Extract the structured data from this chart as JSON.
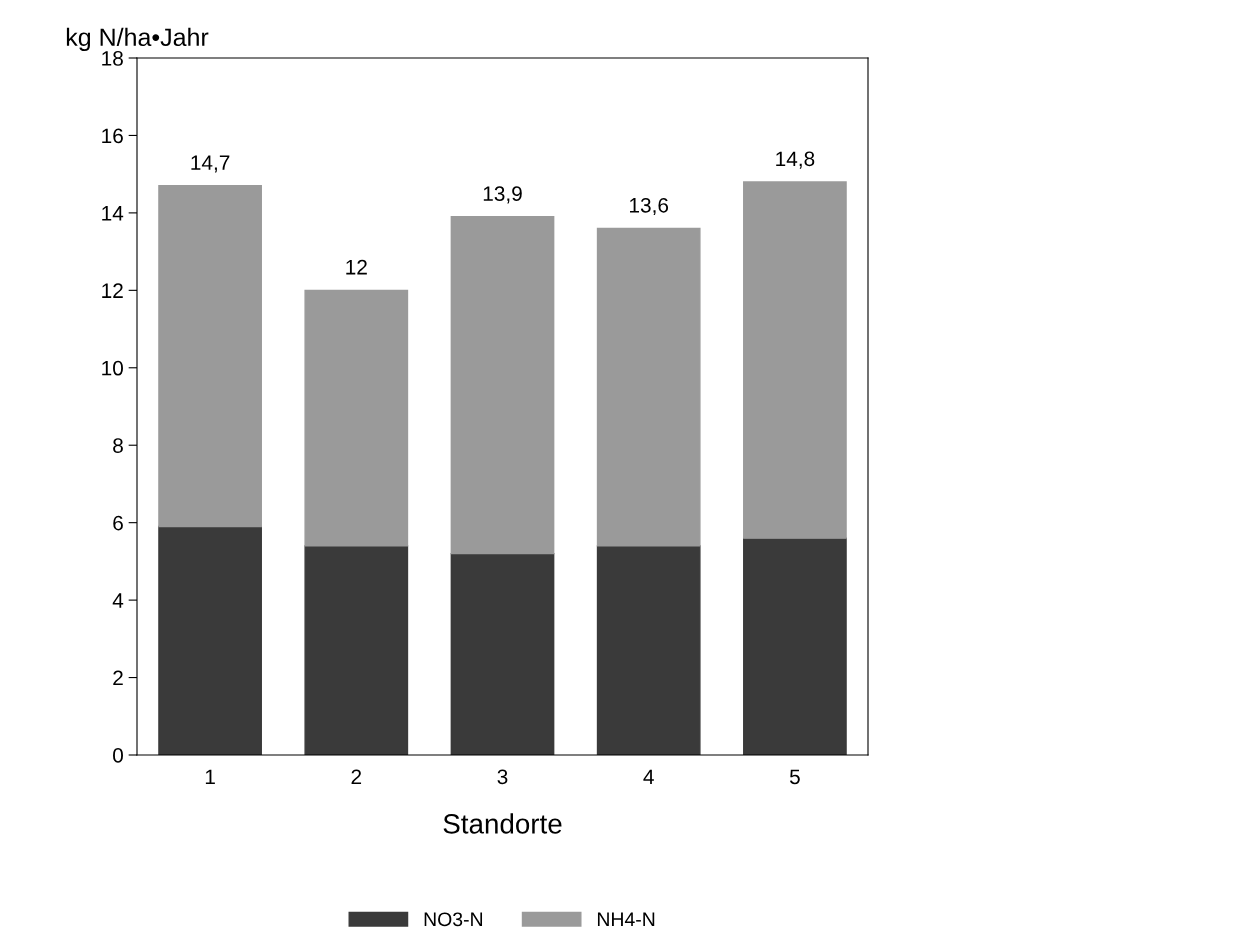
{
  "chart_data": {
    "type": "bar",
    "stacked": true,
    "ylabel": "kg N/ha•Jahr",
    "xlabel": "Standorte",
    "categories": [
      "1",
      "2",
      "3",
      "4",
      "5"
    ],
    "series": [
      {
        "name": "NO3-N",
        "color": "#3a3a3a",
        "values": [
          5.9,
          5.4,
          5.2,
          5.4,
          5.6
        ]
      },
      {
        "name": "NH4-N",
        "color": "#9a9a9a",
        "values": [
          8.8,
          6.6,
          8.7,
          8.2,
          9.2
        ]
      }
    ],
    "totals": [
      "14,7",
      "12",
      "13,9",
      "13,6",
      "14,8"
    ],
    "ylim": [
      0,
      18
    ],
    "yticks": [
      0,
      2,
      4,
      6,
      8,
      10,
      12,
      14,
      16,
      18
    ],
    "grid": false,
    "legend": "bottom"
  }
}
